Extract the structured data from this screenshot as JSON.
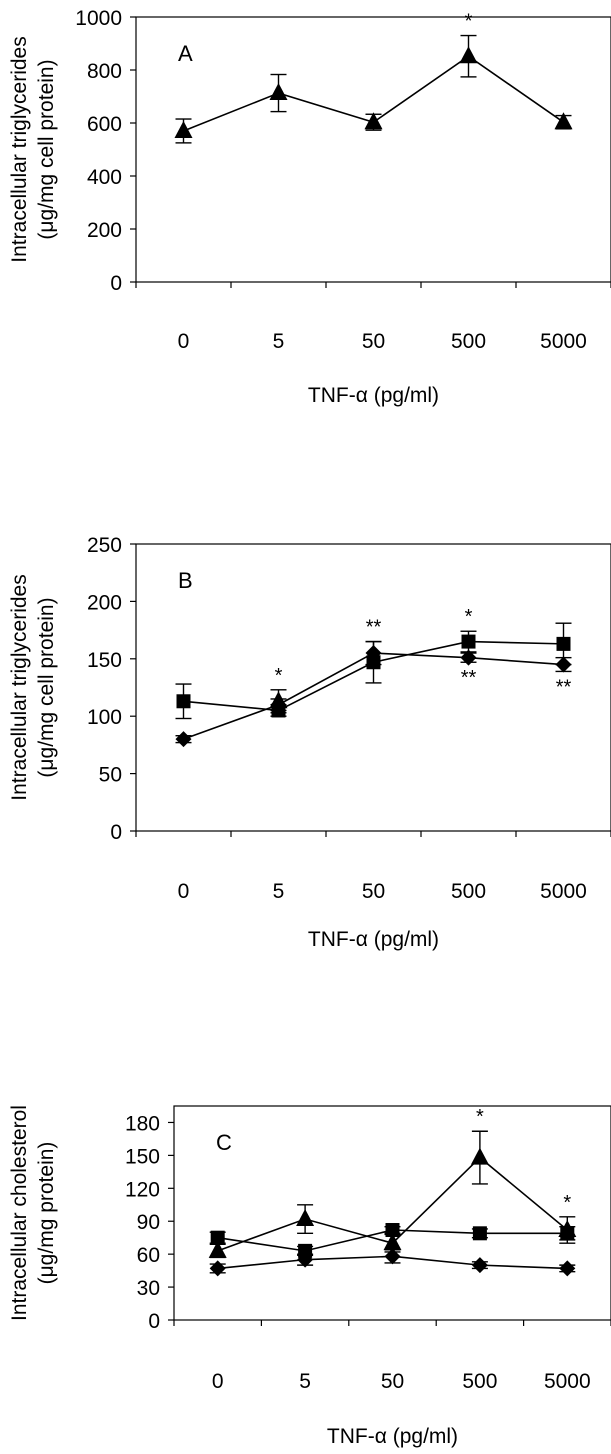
{
  "chart_data": [
    {
      "type": "line",
      "panel_label": "A",
      "categories": [
        "0",
        "5",
        "50",
        "500",
        "5000"
      ],
      "xlabel": "TNF-α (pg/ml)",
      "ylabel_line1": "Intracellular triglycerides",
      "ylabel_line2": "(μg/mg cell protein)",
      "ylim": [
        0,
        1000
      ],
      "yticks": [
        "0",
        "200",
        "400",
        "600",
        "800",
        "1000"
      ],
      "series": [
        {
          "marker": "triangle",
          "values": [
            570,
            713,
            603,
            852,
            603
          ],
          "errors": [
            45,
            70,
            30,
            78,
            25
          ]
        }
      ],
      "annotations": [
        {
          "category": "500",
          "text": "*",
          "position": "above"
        }
      ]
    },
    {
      "type": "line",
      "panel_label": "B",
      "categories": [
        "0",
        "5",
        "50",
        "500",
        "5000"
      ],
      "xlabel": "TNF-α (pg/ml)",
      "ylabel_line1": "Intracellular triglycerides",
      "ylabel_line2": "(μg/mg cell protein)",
      "ylim": [
        0,
        250
      ],
      "yticks": [
        "0",
        "50",
        "100",
        "150",
        "200",
        "250"
      ],
      "series": [
        {
          "marker": "square",
          "values": [
            113,
            105,
            147,
            165,
            163
          ],
          "errors": [
            15,
            5,
            18,
            9,
            18
          ]
        },
        {
          "marker": "triangle",
          "values": [
            null,
            113,
            null,
            null,
            null
          ],
          "errors": [
            null,
            10,
            null,
            null,
            null
          ]
        },
        {
          "marker": "diamond",
          "values": [
            80,
            110,
            155,
            151,
            145
          ],
          "errors": [
            3,
            5,
            10,
            4,
            6
          ]
        }
      ],
      "annotations": [
        {
          "category": "5",
          "text": "*",
          "position": "above"
        },
        {
          "category": "50",
          "text": "**",
          "position": "above"
        },
        {
          "category": "500",
          "text": "*",
          "position": "above"
        },
        {
          "category": "500",
          "text": "**",
          "position": "below"
        },
        {
          "category": "5000",
          "text": "**",
          "position": "below"
        }
      ]
    },
    {
      "type": "line",
      "panel_label": "C",
      "categories": [
        "0",
        "5",
        "50",
        "500",
        "5000"
      ],
      "xlabel": "TNF-α (pg/ml)",
      "ylabel_line1": "Intracellular cholesterol",
      "ylabel_line2": "(μg/mg protein)",
      "ylim": [
        0,
        195
      ],
      "yticks": [
        "0",
        "30",
        "60",
        "90",
        "120",
        "150",
        "180"
      ],
      "series": [
        {
          "marker": "triangle",
          "values": [
            63,
            92,
            70,
            148,
            82
          ],
          "errors": [
            6,
            13,
            8,
            24,
            12
          ]
        },
        {
          "marker": "square",
          "values": [
            75,
            63,
            82,
            79,
            79
          ],
          "errors": [
            5,
            4,
            3,
            4,
            6
          ]
        },
        {
          "marker": "diamond",
          "values": [
            47,
            55,
            58,
            50,
            47
          ],
          "errors": [
            4,
            5,
            6,
            3,
            3
          ]
        }
      ],
      "annotations": [
        {
          "category": "500",
          "text": "*",
          "position": "above"
        },
        {
          "category": "5000",
          "text": "*",
          "position": "above"
        }
      ]
    }
  ]
}
